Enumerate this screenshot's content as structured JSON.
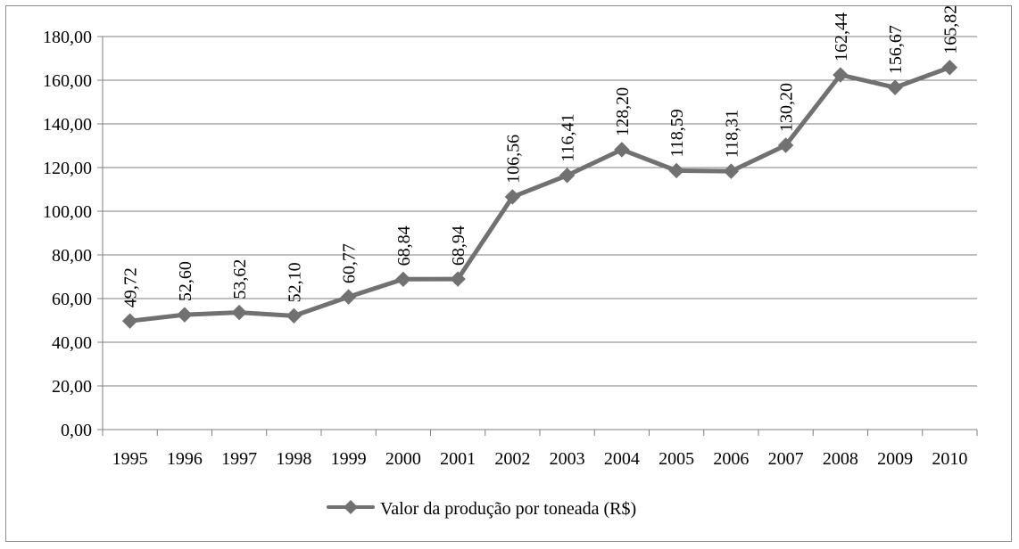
{
  "chart_data": {
    "type": "line",
    "title": "",
    "xlabel": "",
    "ylabel": "",
    "ylim": [
      0,
      180
    ],
    "ytick_step": 20,
    "ytick_labels": [
      "0,00",
      "20,00",
      "40,00",
      "60,00",
      "80,00",
      "100,00",
      "120,00",
      "140,00",
      "160,00",
      "180,00"
    ],
    "grid": true,
    "legend_position": "bottom",
    "categories": [
      "1995",
      "1996",
      "1997",
      "1998",
      "1999",
      "2000",
      "2001",
      "2002",
      "2003",
      "2004",
      "2005",
      "2006",
      "2007",
      "2008",
      "2009",
      "2010"
    ],
    "series": [
      {
        "name": "Valor da produção por toneada (R$)",
        "color": "#717171",
        "marker": "diamond",
        "values": [
          49.72,
          52.6,
          53.62,
          52.1,
          60.77,
          68.84,
          68.94,
          106.56,
          116.41,
          128.2,
          118.59,
          118.31,
          130.2,
          162.44,
          156.67,
          165.82
        ],
        "data_labels": [
          "49,72",
          "52,60",
          "53,62",
          "52,10",
          "60,77",
          "68,84",
          "68,94",
          "106,56",
          "116,41",
          "128,20",
          "118,59",
          "118,31",
          "130,20",
          "162,44",
          "156,67",
          "165,82"
        ]
      }
    ]
  }
}
